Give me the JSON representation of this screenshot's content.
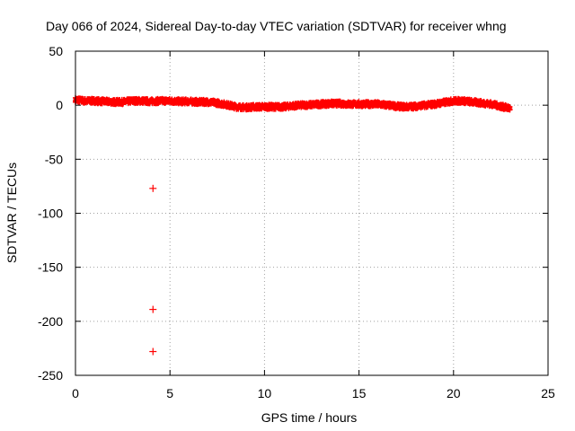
{
  "chart_data": {
    "type": "scatter",
    "title": "Day 066 of 2024, Sidereal Day-to-day VTEC variation (SDTVAR) for receiver whng",
    "xlabel": "GPS time / hours",
    "ylabel": "SDTVAR / TECUs",
    "xlim": [
      0,
      25
    ],
    "ylim": [
      -250,
      50
    ],
    "xticks": [
      0,
      5,
      10,
      15,
      20,
      25
    ],
    "yticks": [
      50,
      0,
      -50,
      -100,
      -150,
      -200,
      -250
    ],
    "grid": true,
    "marker": "plus",
    "series_color": "#ff0000",
    "trend": [
      [
        0.0,
        5
      ],
      [
        0.5,
        4
      ],
      [
        1.0,
        4
      ],
      [
        1.5,
        3.5
      ],
      [
        2.0,
        3
      ],
      [
        2.5,
        3
      ],
      [
        3.0,
        4
      ],
      [
        3.5,
        4
      ],
      [
        4.0,
        3.5
      ],
      [
        4.5,
        4
      ],
      [
        5.0,
        4
      ],
      [
        5.5,
        3.5
      ],
      [
        6.0,
        3.5
      ],
      [
        6.5,
        3
      ],
      [
        7.0,
        3
      ],
      [
        7.5,
        2
      ],
      [
        8.0,
        0.5
      ],
      [
        8.5,
        -1.5
      ],
      [
        9.0,
        -2
      ],
      [
        9.5,
        -1.5
      ],
      [
        10.0,
        -1.5
      ],
      [
        10.5,
        -1.5
      ],
      [
        11.0,
        -1.5
      ],
      [
        11.5,
        -0.5
      ],
      [
        12.0,
        0
      ],
      [
        12.5,
        0.5
      ],
      [
        13.0,
        1
      ],
      [
        13.5,
        1.5
      ],
      [
        14.0,
        1.5
      ],
      [
        14.5,
        1
      ],
      [
        15.0,
        1
      ],
      [
        15.5,
        1
      ],
      [
        16.0,
        1
      ],
      [
        16.5,
        0
      ],
      [
        17.0,
        -1
      ],
      [
        17.5,
        -1.5
      ],
      [
        18.0,
        -1
      ],
      [
        18.5,
        0
      ],
      [
        19.0,
        1
      ],
      [
        19.5,
        2.5
      ],
      [
        20.0,
        4
      ],
      [
        20.5,
        4
      ],
      [
        21.0,
        3
      ],
      [
        21.5,
        2
      ],
      [
        22.0,
        1
      ],
      [
        22.5,
        -1
      ],
      [
        23.0,
        -3
      ]
    ],
    "outliers": [
      {
        "x": 4.1,
        "y": -77
      },
      {
        "x": 4.1,
        "y": -189
      },
      {
        "x": 4.1,
        "y": -228
      }
    ]
  }
}
